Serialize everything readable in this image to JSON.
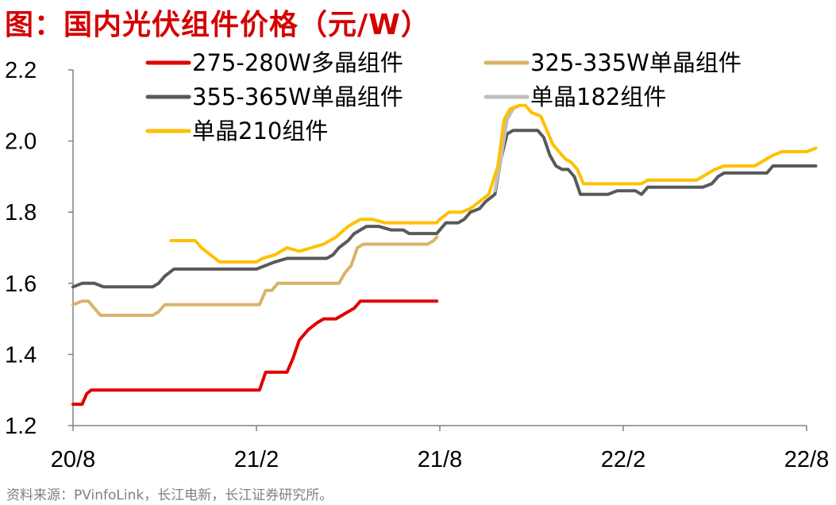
{
  "figure_title": "图：国内光伏组件价格（元/W）",
  "source_note": "资料来源：PVinfoLink，长江电新，长江证券研究所。",
  "colors": {
    "title": "#d40000",
    "axis": "#808080",
    "source": "#808080"
  },
  "chart_data": {
    "type": "line",
    "title": "国内光伏组件价格（元/W）",
    "xlabel": "",
    "ylabel": "",
    "x_domain": [
      0,
      24
    ],
    "ylim": [
      1.2,
      2.2
    ],
    "y_ticks": [
      {
        "value": 1.2,
        "label": "1.2"
      },
      {
        "value": 1.4,
        "label": "1.4"
      },
      {
        "value": 1.6,
        "label": "1.6"
      },
      {
        "value": 1.8,
        "label": "1.8"
      },
      {
        "value": 2.0,
        "label": "2.0"
      },
      {
        "value": 2.2,
        "label": "2.2"
      }
    ],
    "x_ticks": [
      {
        "value": 0,
        "label": "20/8"
      },
      {
        "value": 6,
        "label": "21/2"
      },
      {
        "value": 12,
        "label": "21/8"
      },
      {
        "value": 18,
        "label": "22/2"
      },
      {
        "value": 24,
        "label": "22/8"
      }
    ],
    "legend_position": "top",
    "series": [
      {
        "name": "275-280W多晶组件",
        "color": "#e00000",
        "points": [
          [
            0,
            1.26
          ],
          [
            0.3,
            1.26
          ],
          [
            0.45,
            1.29
          ],
          [
            0.6,
            1.3
          ],
          [
            1,
            1.3
          ],
          [
            2,
            1.3
          ],
          [
            3,
            1.3
          ],
          [
            4,
            1.3
          ],
          [
            5,
            1.3
          ],
          [
            5.9,
            1.3
          ],
          [
            6.1,
            1.3
          ],
          [
            6.3,
            1.35
          ],
          [
            6.5,
            1.35
          ],
          [
            6.8,
            1.35
          ],
          [
            7.0,
            1.35
          ],
          [
            7.2,
            1.39
          ],
          [
            7.4,
            1.44
          ],
          [
            7.7,
            1.47
          ],
          [
            8.0,
            1.49
          ],
          [
            8.2,
            1.5
          ],
          [
            8.6,
            1.5
          ],
          [
            8.8,
            1.51
          ],
          [
            9.0,
            1.52
          ],
          [
            9.2,
            1.53
          ],
          [
            9.4,
            1.55
          ],
          [
            9.6,
            1.55
          ],
          [
            10,
            1.55
          ],
          [
            11,
            1.55
          ],
          [
            11.9,
            1.55
          ]
        ]
      },
      {
        "name": "325-335W单晶组件",
        "color": "#d9b36b",
        "points": [
          [
            0,
            1.54
          ],
          [
            0.3,
            1.55
          ],
          [
            0.5,
            1.55
          ],
          [
            0.7,
            1.53
          ],
          [
            0.9,
            1.51
          ],
          [
            1.2,
            1.51
          ],
          [
            2,
            1.51
          ],
          [
            2.6,
            1.51
          ],
          [
            2.8,
            1.52
          ],
          [
            3.0,
            1.54
          ],
          [
            3.3,
            1.54
          ],
          [
            4,
            1.54
          ],
          [
            5,
            1.54
          ],
          [
            5.9,
            1.54
          ],
          [
            6.1,
            1.54
          ],
          [
            6.3,
            1.58
          ],
          [
            6.5,
            1.58
          ],
          [
            6.7,
            1.6
          ],
          [
            7.0,
            1.6
          ],
          [
            8,
            1.6
          ],
          [
            8.5,
            1.6
          ],
          [
            8.7,
            1.6
          ],
          [
            8.9,
            1.63
          ],
          [
            9.1,
            1.65
          ],
          [
            9.3,
            1.7
          ],
          [
            9.5,
            1.71
          ],
          [
            10,
            1.71
          ],
          [
            11,
            1.71
          ],
          [
            11.6,
            1.71
          ],
          [
            11.8,
            1.72
          ],
          [
            11.9,
            1.73
          ]
        ]
      },
      {
        "name": "355-365W单晶组件",
        "color": "#595959",
        "points": [
          [
            0,
            1.59
          ],
          [
            0.3,
            1.6
          ],
          [
            0.7,
            1.6
          ],
          [
            1.0,
            1.59
          ],
          [
            2,
            1.59
          ],
          [
            2.6,
            1.59
          ],
          [
            2.8,
            1.6
          ],
          [
            3.0,
            1.62
          ],
          [
            3.3,
            1.64
          ],
          [
            4,
            1.64
          ],
          [
            5,
            1.64
          ],
          [
            6,
            1.64
          ],
          [
            6.3,
            1.65
          ],
          [
            6.6,
            1.66
          ],
          [
            7.0,
            1.67
          ],
          [
            8,
            1.67
          ],
          [
            8.3,
            1.67
          ],
          [
            8.5,
            1.68
          ],
          [
            8.7,
            1.7
          ],
          [
            9.0,
            1.72
          ],
          [
            9.2,
            1.74
          ],
          [
            9.4,
            1.75
          ],
          [
            9.6,
            1.76
          ],
          [
            10,
            1.76
          ],
          [
            10.4,
            1.75
          ],
          [
            10.8,
            1.75
          ],
          [
            11.0,
            1.74
          ],
          [
            11.5,
            1.74
          ],
          [
            11.9,
            1.74
          ],
          [
            12.0,
            1.75
          ],
          [
            12.2,
            1.77
          ],
          [
            12.6,
            1.77
          ],
          [
            12.8,
            1.78
          ],
          [
            13.0,
            1.8
          ],
          [
            13.3,
            1.81
          ],
          [
            13.5,
            1.83
          ],
          [
            13.8,
            1.85
          ],
          [
            14.0,
            1.95
          ],
          [
            14.2,
            2.02
          ],
          [
            14.4,
            2.03
          ],
          [
            14.8,
            2.03
          ],
          [
            15.2,
            2.03
          ],
          [
            15.4,
            2.01
          ],
          [
            15.6,
            1.96
          ],
          [
            15.8,
            1.93
          ],
          [
            16.0,
            1.92
          ],
          [
            16.2,
            1.92
          ],
          [
            16.4,
            1.9
          ],
          [
            16.6,
            1.85
          ],
          [
            16.8,
            1.85
          ],
          [
            17.5,
            1.85
          ],
          [
            17.8,
            1.86
          ],
          [
            18.2,
            1.86
          ],
          [
            18.4,
            1.86
          ],
          [
            18.6,
            1.85
          ],
          [
            18.8,
            1.87
          ],
          [
            19.2,
            1.87
          ],
          [
            20,
            1.87
          ],
          [
            20.6,
            1.87
          ],
          [
            20.9,
            1.88
          ],
          [
            21.1,
            1.9
          ],
          [
            21.3,
            1.91
          ],
          [
            22,
            1.91
          ],
          [
            22.5,
            1.91
          ],
          [
            22.7,
            1.91
          ],
          [
            22.9,
            1.93
          ],
          [
            23.5,
            1.93
          ],
          [
            24,
            1.93
          ],
          [
            24.3,
            1.93
          ]
        ]
      },
      {
        "name": "单晶182组件",
        "color": "#bfbfbf",
        "points": [
          [
            13.8,
            1.86
          ],
          [
            14.0,
            1.95
          ],
          [
            14.2,
            2.06
          ],
          [
            14.4,
            2.09
          ],
          [
            14.6,
            2.1
          ]
        ]
      },
      {
        "name": "单晶210组件",
        "color": "#ffc000",
        "points": [
          [
            3.2,
            1.72
          ],
          [
            4.0,
            1.72
          ],
          [
            4.2,
            1.7
          ],
          [
            4.5,
            1.68
          ],
          [
            4.8,
            1.66
          ],
          [
            5.0,
            1.66
          ],
          [
            6.0,
            1.66
          ],
          [
            6.2,
            1.67
          ],
          [
            6.6,
            1.68
          ],
          [
            7.0,
            1.7
          ],
          [
            7.4,
            1.69
          ],
          [
            7.8,
            1.7
          ],
          [
            8.2,
            1.71
          ],
          [
            8.6,
            1.73
          ],
          [
            9.0,
            1.76
          ],
          [
            9.4,
            1.78
          ],
          [
            9.8,
            1.78
          ],
          [
            10.2,
            1.77
          ],
          [
            11,
            1.77
          ],
          [
            11.9,
            1.77
          ],
          [
            12.0,
            1.78
          ],
          [
            12.3,
            1.8
          ],
          [
            12.7,
            1.8
          ],
          [
            13.0,
            1.81
          ],
          [
            13.3,
            1.83
          ],
          [
            13.6,
            1.85
          ],
          [
            13.9,
            1.93
          ],
          [
            14.1,
            2.06
          ],
          [
            14.3,
            2.09
          ],
          [
            14.6,
            2.1
          ],
          [
            14.8,
            2.1
          ],
          [
            15.0,
            2.08
          ],
          [
            15.3,
            2.07
          ],
          [
            15.5,
            2.03
          ],
          [
            15.7,
            1.99
          ],
          [
            15.9,
            1.97
          ],
          [
            16.1,
            1.95
          ],
          [
            16.3,
            1.94
          ],
          [
            16.5,
            1.92
          ],
          [
            16.7,
            1.88
          ],
          [
            17,
            1.88
          ],
          [
            17.5,
            1.88
          ],
          [
            18,
            1.88
          ],
          [
            18.4,
            1.88
          ],
          [
            18.6,
            1.88
          ],
          [
            18.8,
            1.89
          ],
          [
            19.2,
            1.89
          ],
          [
            20,
            1.89
          ],
          [
            20.4,
            1.89
          ],
          [
            20.6,
            1.9
          ],
          [
            21.0,
            1.92
          ],
          [
            21.3,
            1.93
          ],
          [
            22.0,
            1.93
          ],
          [
            22.3,
            1.93
          ],
          [
            22.5,
            1.94
          ],
          [
            22.9,
            1.96
          ],
          [
            23.2,
            1.97
          ],
          [
            23.5,
            1.97
          ],
          [
            24,
            1.97
          ],
          [
            24.3,
            1.98
          ]
        ]
      }
    ]
  }
}
